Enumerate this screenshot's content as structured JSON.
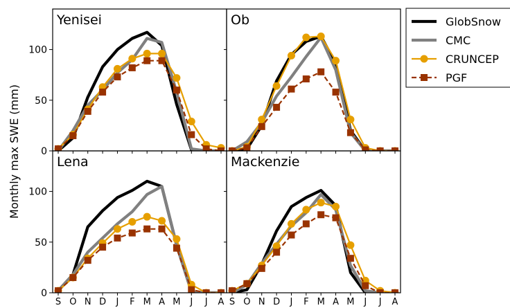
{
  "ylabel": "Monthly max SWE (mm)",
  "months": [
    "S",
    "O",
    "N",
    "D",
    "J",
    "F",
    "M",
    "A",
    "M",
    "J",
    "J",
    "A"
  ],
  "yticks": [
    0,
    50,
    100
  ],
  "ylim": [
    0,
    140
  ],
  "legend": {
    "placement": "outside-right",
    "entries": [
      "GlobSnow",
      "CMC",
      "CRUNCEP",
      "PGF"
    ]
  },
  "series_style": {
    "GlobSnow": {
      "color": "#000000",
      "line": "solid",
      "marker": "none"
    },
    "CMC": {
      "color": "#808080",
      "line": "solid",
      "marker": "none"
    },
    "CRUNCEP": {
      "color": "#e69f00",
      "line": "solid",
      "marker": "circle"
    },
    "PGF": {
      "color": "#993300",
      "line": "dashed",
      "marker": "square"
    }
  },
  "chart_data": [
    {
      "type": "line",
      "title": "Yenisei",
      "categories": [
        "S",
        "O",
        "N",
        "D",
        "J",
        "F",
        "M",
        "A",
        "M",
        "J",
        "J",
        "A"
      ],
      "series": [
        {
          "name": "GlobSnow",
          "values": [
            0,
            13,
            53,
            83,
            100,
            111,
            117,
            104,
            46,
            1,
            0,
            0
          ]
        },
        {
          "name": "CMC",
          "values": [
            0,
            20,
            45,
            60,
            77,
            90,
            111,
            107,
            58,
            2,
            0,
            0
          ]
        },
        {
          "name": "CRUNCEP",
          "values": [
            2,
            16,
            41,
            63,
            81,
            91,
            96,
            96,
            72,
            29,
            6,
            3
          ]
        },
        {
          "name": "PGF",
          "values": [
            2,
            15,
            39,
            58,
            73,
            82,
            89,
            89,
            60,
            16,
            2,
            0
          ]
        }
      ]
    },
    {
      "type": "line",
      "title": "Ob",
      "categories": [
        "S",
        "O",
        "N",
        "D",
        "J",
        "F",
        "M",
        "A",
        "M",
        "J",
        "J",
        "A"
      ],
      "series": [
        {
          "name": "GlobSnow",
          "values": [
            0,
            2,
            25,
            69,
            95,
            108,
            113,
            86,
            20,
            0,
            0,
            0
          ]
        },
        {
          "name": "CMC",
          "values": [
            0,
            9,
            28,
            54,
            73,
            93,
            112,
            80,
            18,
            0,
            0,
            0
          ]
        },
        {
          "name": "CRUNCEP",
          "values": [
            0,
            4,
            31,
            64,
            94,
            112,
            113,
            89,
            31,
            3,
            0,
            0
          ]
        },
        {
          "name": "PGF",
          "values": [
            0,
            3,
            24,
            43,
            61,
            71,
            78,
            58,
            18,
            1,
            0,
            0
          ]
        }
      ]
    },
    {
      "type": "line",
      "title": "Lena",
      "categories": [
        "S",
        "O",
        "N",
        "D",
        "J",
        "F",
        "M",
        "A",
        "M",
        "J",
        "J",
        "A"
      ],
      "series": [
        {
          "name": "GlobSnow",
          "values": [
            2,
            18,
            65,
            81,
            94,
            101,
            110,
            105,
            47,
            1,
            0,
            0
          ]
        },
        {
          "name": "CMC",
          "values": [
            2,
            18,
            40,
            54,
            68,
            80,
            97,
            105,
            47,
            1,
            0,
            0
          ]
        },
        {
          "name": "CRUNCEP",
          "values": [
            2,
            15,
            34,
            49,
            63,
            70,
            75,
            71,
            53,
            8,
            0,
            0
          ]
        },
        {
          "name": "PGF",
          "values": [
            2,
            15,
            32,
            45,
            54,
            59,
            63,
            63,
            44,
            3,
            0,
            0
          ]
        }
      ]
    },
    {
      "type": "line",
      "title": "Mackenzie",
      "categories": [
        "S",
        "O",
        "N",
        "D",
        "J",
        "F",
        "M",
        "A",
        "M",
        "J",
        "J",
        "A"
      ],
      "series": [
        {
          "name": "GlobSnow",
          "values": [
            0,
            3,
            28,
            61,
            85,
            94,
            101,
            86,
            20,
            0,
            0,
            0
          ]
        },
        {
          "name": "CMC",
          "values": [
            0,
            8,
            29,
            48,
            66,
            79,
            97,
            82,
            27,
            2,
            0,
            0
          ]
        },
        {
          "name": "CRUNCEP",
          "values": [
            2,
            9,
            27,
            46,
            68,
            82,
            89,
            85,
            47,
            12,
            2,
            0
          ]
        },
        {
          "name": "PGF",
          "values": [
            2,
            9,
            24,
            40,
            57,
            68,
            77,
            74,
            34,
            7,
            0,
            0
          ]
        }
      ]
    }
  ]
}
